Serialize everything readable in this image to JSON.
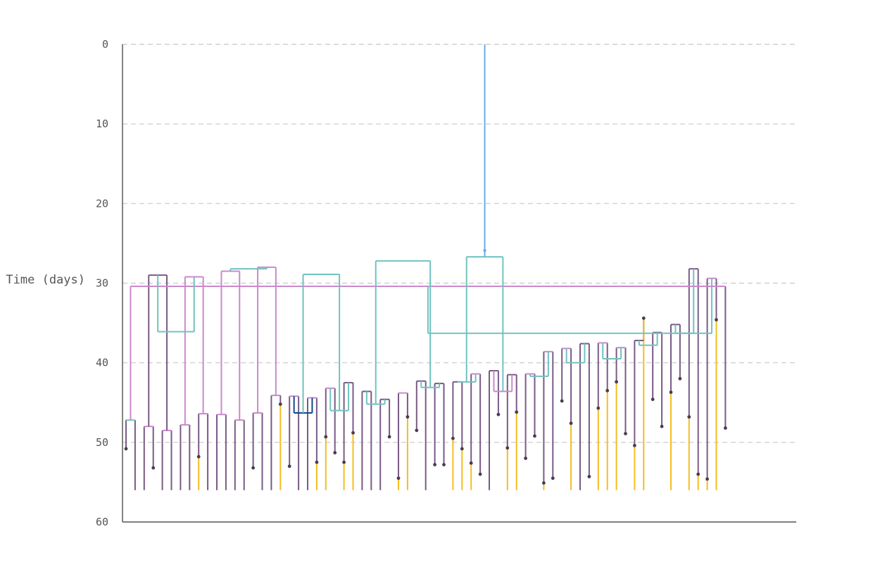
{
  "chart_data": {
    "type": "tree",
    "ylabel": "Time (days)",
    "ylim": [
      0,
      60
    ],
    "yticks": [
      0,
      10,
      20,
      30,
      40,
      50,
      60
    ],
    "grid": true,
    "colors": {
      "root": "#6aaee8",
      "trunk": "#0b4c8f",
      "mid": "#6fc3bf",
      "sub": "#cc88cc",
      "leaf": "#7a5a86",
      "tip": "#f5bd21",
      "dot": "#4a3c50"
    },
    "leaves": [
      {
        "x": 1,
        "end": 50.8,
        "mark": true,
        "c": "leaf"
      },
      {
        "x": 2,
        "end": 56,
        "mark": false,
        "c": "leaf"
      },
      {
        "x": 3,
        "end": 56,
        "mark": false,
        "c": "leaf"
      },
      {
        "x": 4,
        "end": 53.2,
        "mark": true,
        "c": "leaf"
      },
      {
        "x": 5,
        "end": 56,
        "mark": false,
        "c": "leaf"
      },
      {
        "x": 6,
        "end": 56,
        "mark": false,
        "c": "leaf"
      },
      {
        "x": 7,
        "end": 56,
        "mark": false,
        "c": "leaf"
      },
      {
        "x": 8,
        "end": 56,
        "mark": false,
        "c": "leaf"
      },
      {
        "x": 9,
        "end": 56,
        "mark": false,
        "c": "tip",
        "split": 51.8
      },
      {
        "x": 10,
        "end": 56,
        "mark": false,
        "c": "leaf"
      },
      {
        "x": 11,
        "end": 56,
        "mark": false,
        "c": "leaf"
      },
      {
        "x": 12,
        "end": 56,
        "mark": false,
        "c": "leaf"
      },
      {
        "x": 13,
        "end": 56,
        "mark": false,
        "c": "leaf"
      },
      {
        "x": 14,
        "end": 56,
        "mark": false,
        "c": "leaf"
      },
      {
        "x": 15,
        "end": 53.2,
        "mark": true,
        "c": "leaf"
      },
      {
        "x": 16,
        "end": 56,
        "mark": false,
        "c": "leaf"
      },
      {
        "x": 17,
        "end": 56,
        "mark": false,
        "c": "leaf"
      },
      {
        "x": 18,
        "end": 56,
        "mark": false,
        "c": "tip",
        "split": 45.2
      },
      {
        "x": 19,
        "end": 53.0,
        "mark": true,
        "c": "leaf"
      },
      {
        "x": 20,
        "end": 56,
        "mark": false,
        "c": "leaf"
      },
      {
        "x": 21,
        "end": 56,
        "mark": false,
        "c": "leaf"
      },
      {
        "x": 22,
        "end": 56,
        "mark": false,
        "c": "tip",
        "split": 52.5
      },
      {
        "x": 23,
        "end": 56,
        "mark": false,
        "c": "tip",
        "split": 49.3
      },
      {
        "x": 24,
        "end": 51.3,
        "mark": true,
        "c": "leaf"
      },
      {
        "x": 25,
        "end": 56,
        "mark": false,
        "c": "tip",
        "split": 52.5
      },
      {
        "x": 26,
        "end": 56,
        "mark": false,
        "c": "tip",
        "split": 48.8
      },
      {
        "x": 27,
        "end": 56,
        "mark": false,
        "c": "leaf"
      },
      {
        "x": 28,
        "end": 56,
        "mark": false,
        "c": "leaf"
      },
      {
        "x": 29,
        "end": 56,
        "mark": false,
        "c": "leaf"
      },
      {
        "x": 30,
        "end": 49.3,
        "mark": true,
        "c": "leaf"
      },
      {
        "x": 31,
        "end": 56,
        "mark": false,
        "c": "tip",
        "split": 54.5
      },
      {
        "x": 32,
        "end": 56,
        "mark": false,
        "c": "tip",
        "split": 46.8
      },
      {
        "x": 33,
        "end": 48.5,
        "mark": true,
        "c": "leaf"
      },
      {
        "x": 34,
        "end": 56,
        "mark": false,
        "c": "leaf"
      },
      {
        "x": 35,
        "end": 52.8,
        "mark": true,
        "c": "leaf"
      },
      {
        "x": 36,
        "end": 52.8,
        "mark": true,
        "c": "leaf"
      },
      {
        "x": 37,
        "end": 56,
        "mark": false,
        "c": "tip",
        "split": 49.5
      },
      {
        "x": 38,
        "end": 56,
        "mark": false,
        "c": "tip",
        "split": 50.8
      },
      {
        "x": 39,
        "end": 56,
        "mark": false,
        "c": "tip",
        "split": 52.6
      },
      {
        "x": 40,
        "end": 54.0,
        "mark": true,
        "c": "leaf"
      },
      {
        "x": 41,
        "end": 56,
        "mark": false,
        "c": "leaf"
      },
      {
        "x": 42,
        "end": 46.5,
        "mark": true,
        "c": "leaf"
      },
      {
        "x": 43,
        "end": 56,
        "mark": false,
        "c": "tip",
        "split": 50.7
      },
      {
        "x": 44,
        "end": 56,
        "mark": false,
        "c": "tip",
        "split": 46.2
      },
      {
        "x": 45,
        "end": 52.0,
        "mark": true,
        "c": "leaf"
      },
      {
        "x": 46,
        "end": 49.2,
        "mark": true,
        "c": "leaf"
      },
      {
        "x": 47,
        "end": 56,
        "mark": false,
        "c": "tip",
        "split": 55.1
      },
      {
        "x": 48,
        "end": 54.5,
        "mark": true,
        "c": "leaf"
      },
      {
        "x": 49,
        "end": 44.8,
        "mark": true,
        "c": "leaf"
      },
      {
        "x": 50,
        "end": 56,
        "mark": false,
        "c": "tip",
        "split": 47.6
      },
      {
        "x": 51,
        "end": 56,
        "mark": false,
        "c": "leaf"
      },
      {
        "x": 52,
        "end": 54.3,
        "mark": true,
        "c": "leaf"
      },
      {
        "x": 53,
        "end": 56,
        "mark": false,
        "c": "tip",
        "split": 45.7
      },
      {
        "x": 54,
        "end": 56,
        "mark": false,
        "c": "tip",
        "split": 43.5
      },
      {
        "x": 55,
        "end": 56,
        "mark": false,
        "c": "tip",
        "split": 42.4
      },
      {
        "x": 56,
        "end": 48.9,
        "mark": true,
        "c": "leaf"
      },
      {
        "x": 57,
        "end": 56,
        "mark": false,
        "c": "tip",
        "split": 50.4
      },
      {
        "x": 58,
        "end": 56,
        "mark": false,
        "c": "tip",
        "split": 34.4
      },
      {
        "x": 59,
        "end": 44.6,
        "mark": true,
        "c": "leaf"
      },
      {
        "x": 60,
        "end": 48.0,
        "mark": true,
        "c": "leaf"
      },
      {
        "x": 61,
        "end": 56,
        "mark": false,
        "c": "tip",
        "split": 43.7
      },
      {
        "x": 62,
        "end": 42.0,
        "mark": true,
        "c": "leaf"
      },
      {
        "x": 63,
        "end": 56,
        "mark": false,
        "c": "tip",
        "split": 46.8
      },
      {
        "x": 64,
        "end": 56,
        "mark": false,
        "c": "tip",
        "split": 54.0
      },
      {
        "x": 65,
        "end": 56,
        "mark": false,
        "c": "tip",
        "split": 54.6
      },
      {
        "x": 66,
        "end": 56,
        "mark": false,
        "c": "tip",
        "split": 34.6
      },
      {
        "x": 67,
        "end": 48.2,
        "mark": true,
        "c": "leaf"
      }
    ],
    "internal": [
      {
        "l": 1,
        "r": 2,
        "t": 47.2,
        "c": "mid"
      },
      {
        "l": 3,
        "r": 4,
        "t": 48.0,
        "c": "sub"
      },
      {
        "l": 5,
        "r": 6,
        "t": 48.5,
        "c": "sub"
      },
      {
        "l": 7,
        "r": 8,
        "t": 47.8,
        "c": "sub"
      },
      {
        "l": 9,
        "r": 10,
        "t": 46.4,
        "c": "sub"
      },
      {
        "l": 11,
        "r": 12,
        "t": 46.5,
        "c": "sub"
      },
      {
        "l": 13,
        "r": 14,
        "t": 47.2,
        "c": "sub"
      },
      {
        "l": 15,
        "r": 16,
        "t": 46.3,
        "c": "sub"
      },
      {
        "l": 17,
        "r": 18,
        "t": 44.1,
        "c": "sub"
      },
      {
        "l": 19,
        "r": 20,
        "t": 44.2,
        "c": "sub"
      },
      {
        "l": 21,
        "r": 22,
        "t": 44.4,
        "c": "sub"
      },
      {
        "l": 23,
        "r": 24,
        "t": 43.2,
        "c": "sub"
      },
      {
        "l": 25,
        "r": 26,
        "t": 42.5,
        "c": "leaf"
      },
      {
        "l": 27,
        "r": 28,
        "t": 43.6,
        "c": "leaf"
      },
      {
        "l": 29,
        "r": 30,
        "t": 44.6,
        "c": "leaf"
      },
      {
        "l": 31,
        "r": 32,
        "t": 43.8,
        "c": "sub"
      },
      {
        "l": 33,
        "r": 34,
        "t": 42.3,
        "c": "leaf"
      },
      {
        "l": 35,
        "r": 36,
        "t": 42.6,
        "c": "leaf"
      },
      {
        "l": 37,
        "r": 38,
        "t": 42.4,
        "c": "leaf"
      },
      {
        "l": 39,
        "r": 40,
        "t": 41.4,
        "c": "sub"
      },
      {
        "l": 41,
        "r": 42,
        "t": 41.0,
        "c": "leaf"
      },
      {
        "l": 43,
        "r": 44,
        "t": 41.5,
        "c": "leaf"
      },
      {
        "l": 45,
        "r": 46,
        "t": 41.4,
        "c": "sub"
      },
      {
        "l": 47,
        "r": 48,
        "t": 38.6,
        "c": "sub"
      },
      {
        "l": 49,
        "r": 50,
        "t": 38.2,
        "c": "sub"
      },
      {
        "l": 51,
        "r": 52,
        "t": 37.6,
        "c": "leaf"
      },
      {
        "l": 53,
        "r": 54,
        "t": 37.5,
        "c": "sub"
      },
      {
        "l": 55,
        "r": 56,
        "t": 38.1,
        "c": "sub"
      },
      {
        "l": 57,
        "r": 58,
        "t": 37.2,
        "c": "leaf"
      },
      {
        "l": 59,
        "r": 60,
        "t": 36.2,
        "c": "leaf"
      },
      {
        "l": 61,
        "r": 62,
        "t": 35.2,
        "c": "leaf"
      },
      {
        "l": 63,
        "r": 64,
        "t": 28.2,
        "c": "leaf"
      },
      {
        "l": 65,
        "r": 66,
        "t": 29.4,
        "c": "sub"
      },
      {
        "l": 67,
        "r": 68,
        "t": 30.4,
        "c": "sub"
      },
      {
        "l": 69,
        "r": 70,
        "t": 29.0,
        "c": "leaf"
      },
      {
        "l": 71,
        "r": 72,
        "t": 29.2,
        "c": "sub"
      },
      {
        "l": 73,
        "r": 74,
        "t": 28.5,
        "c": "sub"
      },
      {
        "l": 75,
        "r": 76,
        "t": 28.0,
        "c": "sub"
      },
      {
        "l": 77,
        "r": 78,
        "t": 46.3,
        "c": "trunk"
      },
      {
        "l": 79,
        "r": 80,
        "t": 46.0,
        "c": "mid"
      },
      {
        "l": 81,
        "r": 82,
        "t": 45.2,
        "c": "mid"
      },
      {
        "l": 84,
        "r": 85,
        "t": 43.1,
        "c": "mid"
      },
      {
        "l": 86,
        "r": 87,
        "t": 42.4,
        "c": "mid"
      },
      {
        "l": 88,
        "r": 89,
        "t": 43.6,
        "c": "sub"
      },
      {
        "l": 90,
        "r": 91,
        "t": 41.7,
        "c": "mid"
      },
      {
        "l": 92,
        "r": 93,
        "t": 40.0,
        "c": "mid"
      },
      {
        "l": 94,
        "r": 95,
        "t": 39.5,
        "c": "mid"
      },
      {
        "l": 96,
        "r": 97,
        "t": 37.8,
        "c": "mid"
      },
      {
        "l": 98,
        "r": 99,
        "t": 36.3,
        "c": "mid"
      },
      {
        "l": 100,
        "r": 101,
        "t": 36.3,
        "c": "mid"
      },
      {
        "l": 102,
        "r": 103,
        "t": 36.1,
        "c": "mid"
      },
      {
        "l": 104,
        "r": 105,
        "t": 28.2,
        "c": "mid"
      },
      {
        "l": 106,
        "r": 107,
        "t": 28.9,
        "c": "mid"
      },
      {
        "l": 108,
        "r": 109,
        "t": 27.2,
        "c": "mid"
      },
      {
        "l": 110,
        "r": 111,
        "t": 26.7,
        "c": "mid"
      }
    ]
  }
}
